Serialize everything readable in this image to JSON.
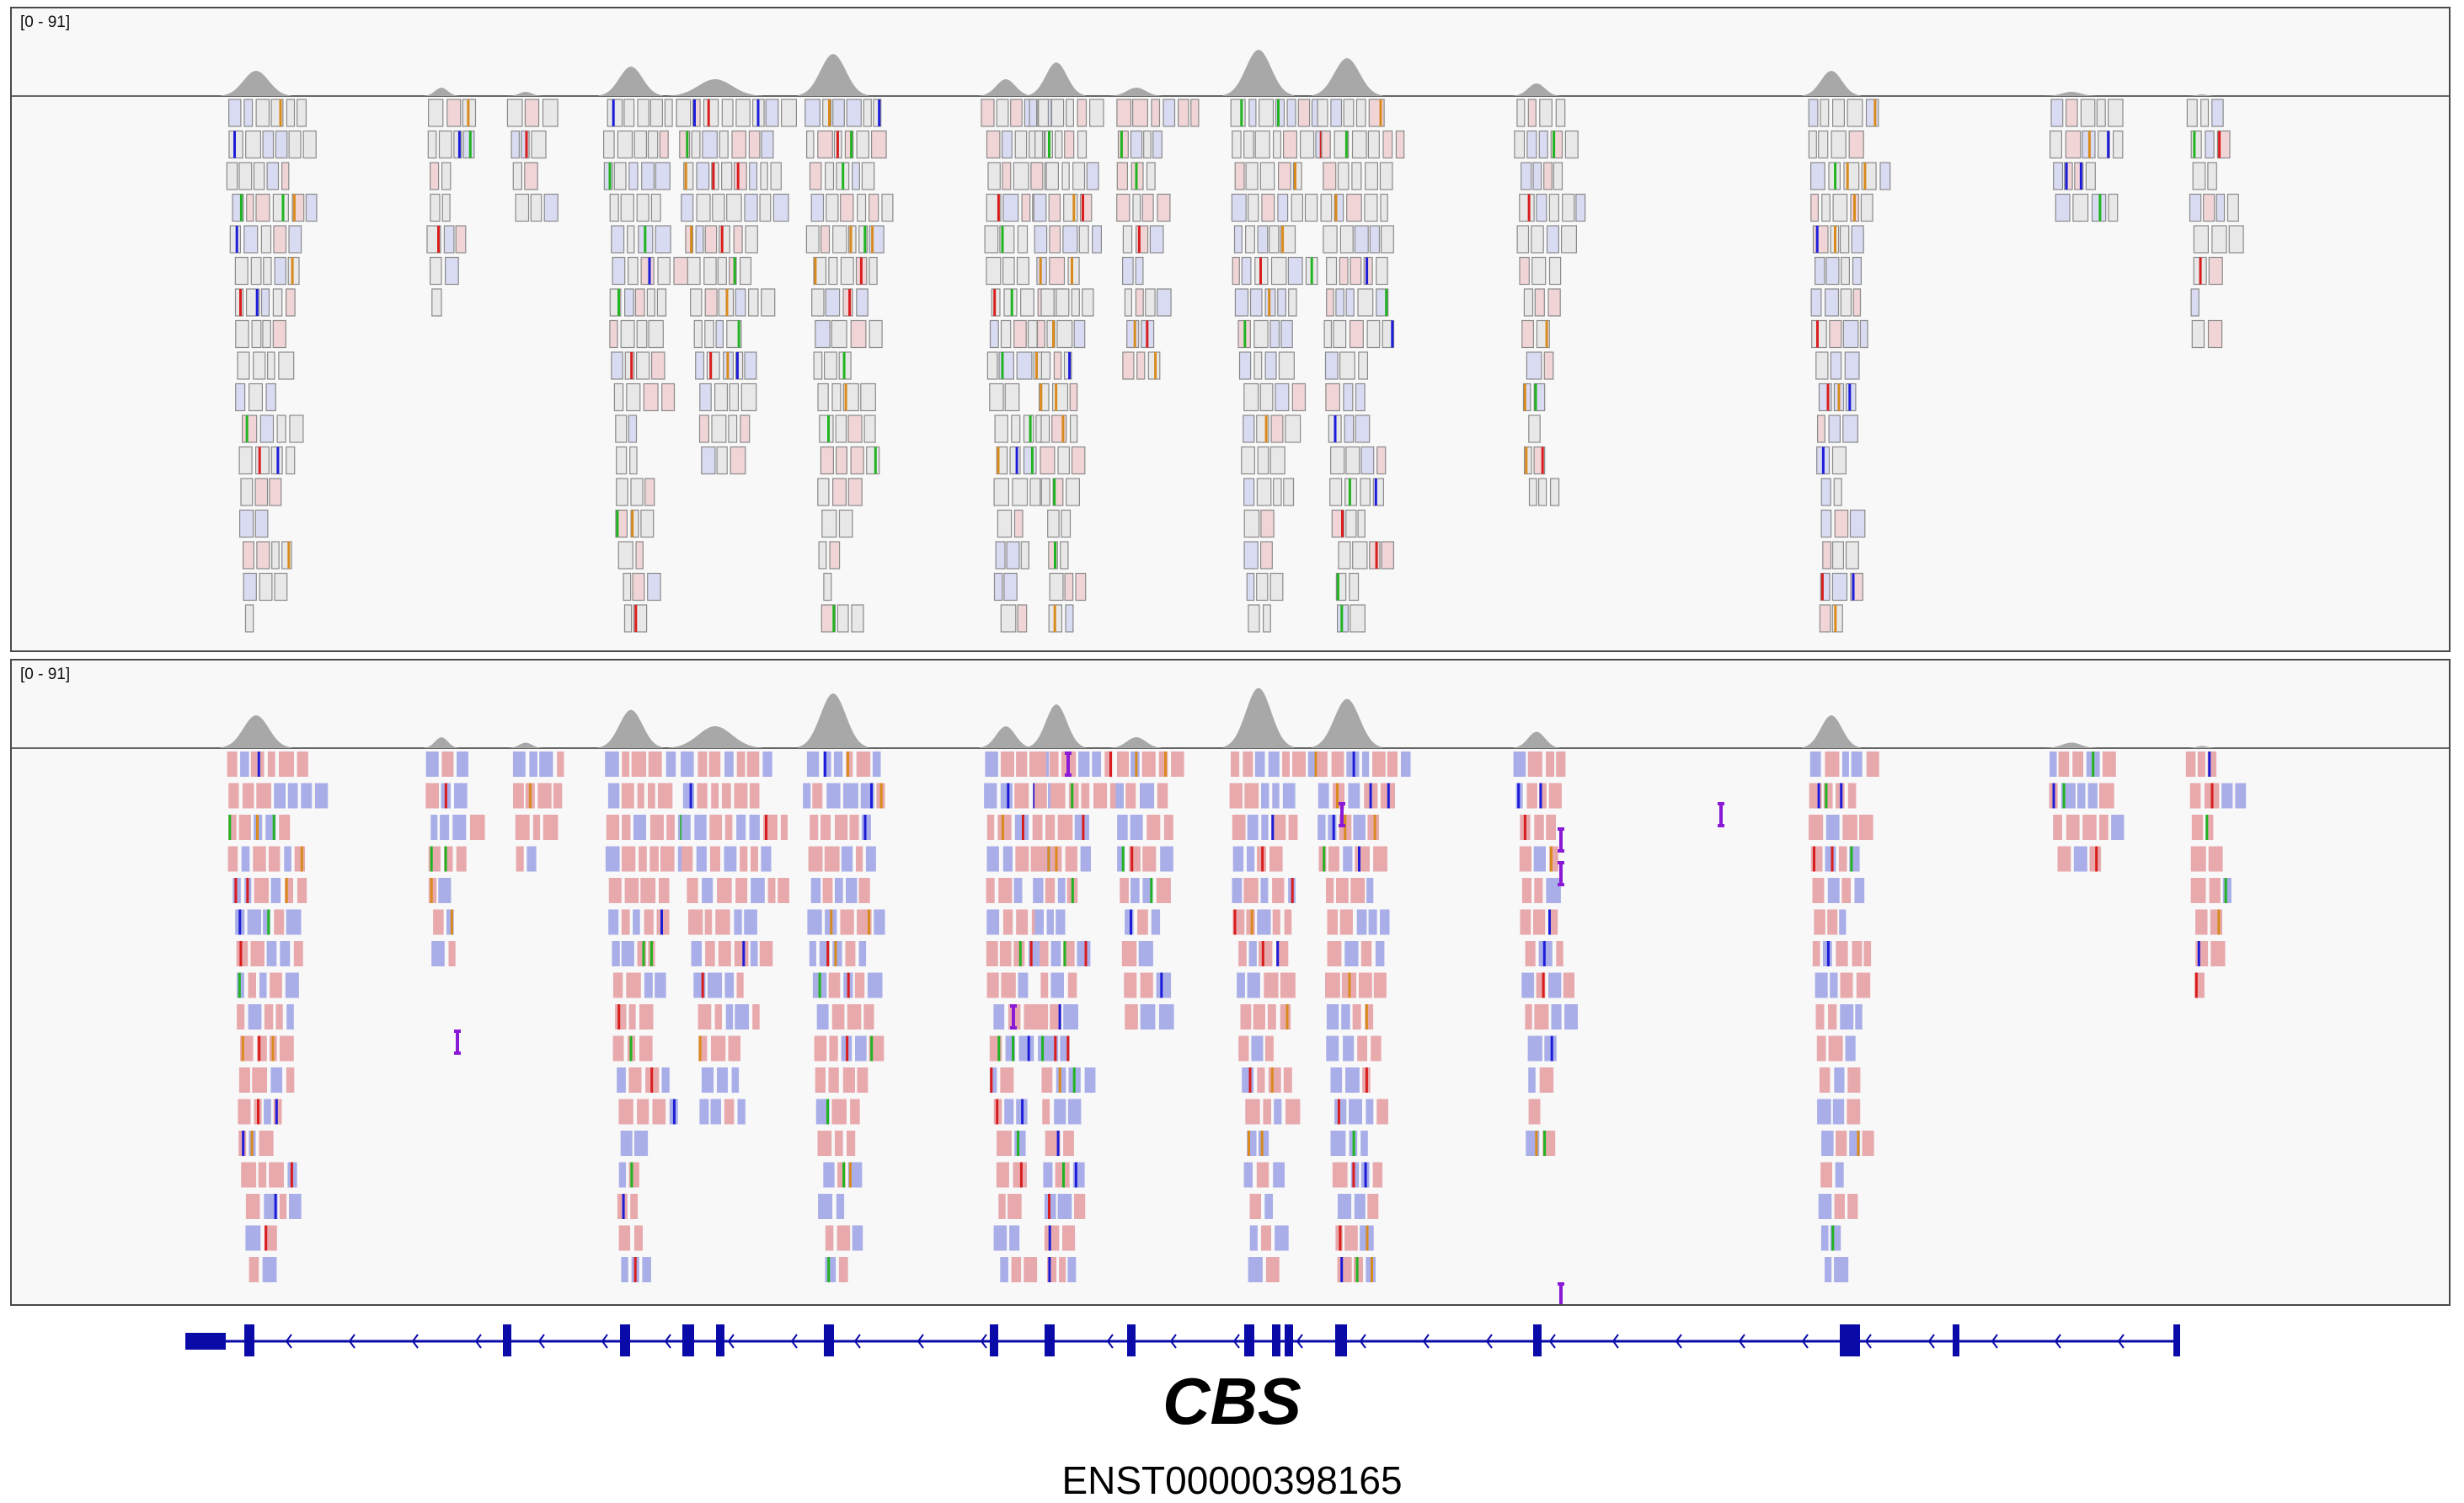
{
  "tracks": [
    {
      "id": "alignment-track-1",
      "range_label": "[0 - 91]",
      "rows": 17,
      "mode": "outlined",
      "colors": {
        "coverage": "#a8a8a8",
        "read_fill": "#e8e8e8",
        "read_outline": "#8a8a8a"
      }
    },
    {
      "id": "alignment-track-2",
      "range_label": "[0 - 91]",
      "rows": 17,
      "mode": "filled",
      "colors": {
        "coverage": "#a8a8a8",
        "read_pink": "#e8a9ad",
        "read_blue": "#a9aee8"
      }
    }
  ],
  "mismatch_colors": [
    "#d91d1d",
    "#1d1dd9",
    "#21b321",
    "#d98a1d"
  ],
  "insertion_color": "#8a1ad6",
  "gene": {
    "name": "CBS",
    "transcript": "ENST00000398165",
    "strand": "-",
    "color": "#0a0aa8"
  }
}
